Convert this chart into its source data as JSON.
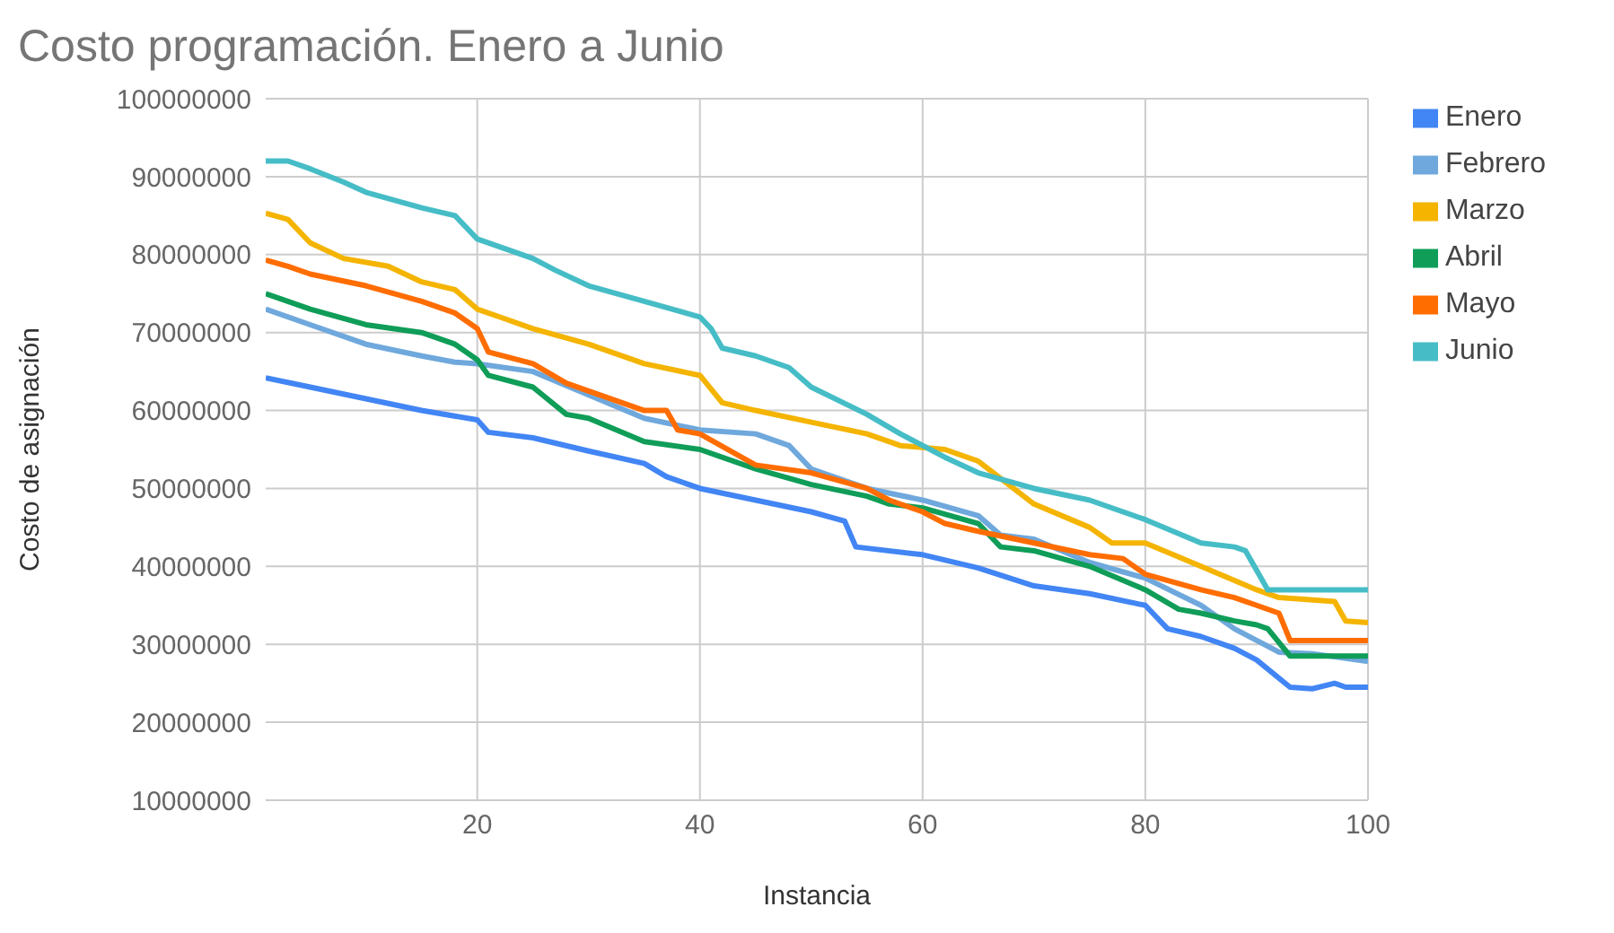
{
  "chart_data": {
    "type": "line",
    "title": "Costo programación. Enero a Junio",
    "xlabel": "Instancia",
    "ylabel": "Costo de asignación",
    "xlim": [
      1,
      100
    ],
    "xticks": [
      20,
      40,
      60,
      80,
      100
    ],
    "ylim": [
      10000000,
      100000000
    ],
    "yticks": [
      10000000,
      20000000,
      30000000,
      40000000,
      50000000,
      60000000,
      70000000,
      80000000,
      90000000,
      100000000
    ],
    "grid": true,
    "legend": "right",
    "marker": "none",
    "line_style": "solid",
    "series": [
      {
        "name": "Enero",
        "color": "#4285f4",
        "x": [
          1,
          5,
          10,
          15,
          20,
          21,
          25,
          30,
          35,
          37,
          40,
          45,
          50,
          53,
          54,
          60,
          65,
          70,
          75,
          80,
          82,
          85,
          88,
          90,
          93,
          95,
          97,
          98,
          100
        ],
        "values": [
          64200000,
          63000000,
          61500000,
          60000000,
          58800000,
          57200000,
          56500000,
          54800000,
          53200000,
          51500000,
          50000000,
          48500000,
          47000000,
          45800000,
          42500000,
          41500000,
          39800000,
          37500000,
          36500000,
          35000000,
          32000000,
          31000000,
          29500000,
          28000000,
          24500000,
          24300000,
          25000000,
          24500000,
          24500000
        ]
      },
      {
        "name": "Febrero",
        "color": "#6fa8dc",
        "x": [
          1,
          5,
          10,
          15,
          18,
          20,
          25,
          30,
          35,
          40,
          45,
          48,
          50,
          55,
          60,
          65,
          67,
          70,
          75,
          80,
          85,
          88,
          90,
          92,
          95,
          100
        ],
        "values": [
          73000000,
          71000000,
          68500000,
          67000000,
          66200000,
          66000000,
          65000000,
          62000000,
          59000000,
          57500000,
          57000000,
          55500000,
          52500000,
          50000000,
          48500000,
          46500000,
          44000000,
          43500000,
          40500000,
          38500000,
          35000000,
          32000000,
          30500000,
          29000000,
          28800000,
          27800000
        ]
      },
      {
        "name": "Marzo",
        "color": "#f4b400",
        "x": [
          1,
          3,
          5,
          8,
          12,
          15,
          18,
          20,
          22,
          25,
          30,
          35,
          40,
          42,
          45,
          50,
          55,
          58,
          62,
          65,
          70,
          75,
          77,
          80,
          85,
          90,
          92,
          97,
          98,
          100
        ],
        "values": [
          85300000,
          84500000,
          81500000,
          79500000,
          78500000,
          76500000,
          75500000,
          73000000,
          72000000,
          70500000,
          68500000,
          66000000,
          64500000,
          61000000,
          60000000,
          58500000,
          57000000,
          55500000,
          55000000,
          53500000,
          48000000,
          45000000,
          43000000,
          43000000,
          40000000,
          37000000,
          36000000,
          35500000,
          33000000,
          32800000
        ]
      },
      {
        "name": "Abril",
        "color": "#0f9d58",
        "x": [
          1,
          5,
          10,
          15,
          18,
          20,
          21,
          25,
          28,
          30,
          35,
          40,
          45,
          50,
          55,
          57,
          60,
          65,
          67,
          70,
          75,
          80,
          83,
          85,
          88,
          90,
          91,
          93,
          100
        ],
        "values": [
          75000000,
          73000000,
          71000000,
          70000000,
          68500000,
          66500000,
          64500000,
          63000000,
          59500000,
          59000000,
          56000000,
          55000000,
          52500000,
          50500000,
          49000000,
          48000000,
          47500000,
          45500000,
          42500000,
          42000000,
          40000000,
          37000000,
          34500000,
          34000000,
          33000000,
          32500000,
          32000000,
          28500000,
          28500000
        ]
      },
      {
        "name": "Mayo",
        "color": "#ff6d01",
        "x": [
          1,
          3,
          5,
          10,
          15,
          18,
          20,
          21,
          25,
          28,
          30,
          35,
          37,
          38,
          40,
          45,
          50,
          55,
          57,
          60,
          62,
          65,
          70,
          75,
          78,
          80,
          85,
          88,
          90,
          92,
          93,
          100
        ],
        "values": [
          79300000,
          78500000,
          77500000,
          76000000,
          74000000,
          72500000,
          70500000,
          67500000,
          66000000,
          63500000,
          62500000,
          60000000,
          60000000,
          57500000,
          57000000,
          53000000,
          52000000,
          50000000,
          48500000,
          47000000,
          45500000,
          44500000,
          43000000,
          41500000,
          41000000,
          39000000,
          37000000,
          36000000,
          35000000,
          34000000,
          30500000,
          30500000
        ]
      },
      {
        "name": "Junio",
        "color": "#46bdc6",
        "x": [
          1,
          3,
          5,
          8,
          10,
          15,
          18,
          20,
          25,
          27,
          30,
          35,
          40,
          41,
          42,
          45,
          48,
          50,
          55,
          58,
          60,
          62,
          65,
          70,
          75,
          80,
          85,
          88,
          89,
          91,
          100
        ],
        "values": [
          92000000,
          92000000,
          91000000,
          89300000,
          88000000,
          86000000,
          85000000,
          82000000,
          79500000,
          78000000,
          76000000,
          74000000,
          72000000,
          70500000,
          68000000,
          67000000,
          65500000,
          63000000,
          59500000,
          57000000,
          55500000,
          54000000,
          52000000,
          50000000,
          48500000,
          46000000,
          43000000,
          42500000,
          42000000,
          37000000,
          37000000
        ]
      }
    ]
  }
}
